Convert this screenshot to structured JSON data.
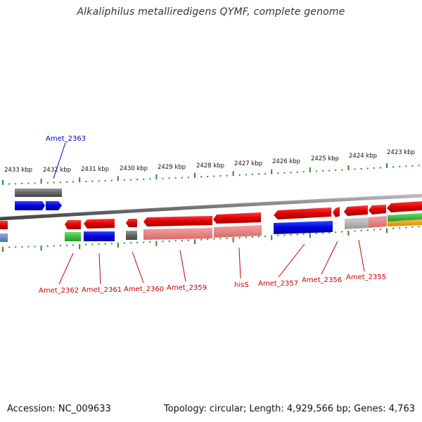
{
  "title": "Alkaliphilus metalliredigens QYMF, complete genome",
  "footer": {
    "accession": "Accession: NC_009633",
    "summary": "Topology: circular; Length: 4,929,566 bp; Genes: 4,763"
  },
  "scale_labels": [
    "2433 kbp",
    "2432 kbp",
    "2431 kbp",
    "2430 kbp",
    "2429 kbp",
    "2428 kbp",
    "2427 kbp",
    "2426 kbp",
    "2425 kbp",
    "2424 kbp",
    "2423 kbp"
  ],
  "gene_labels_bottom": [
    "Amet_2362",
    "Amet_2361",
    "Amet_2360",
    "Amet_2359",
    "hisS",
    "Amet_2357",
    "Amet_2356",
    "Amet_2355"
  ],
  "gene_label_top": "Amet_2363",
  "colors": {
    "forward_gene": "#0000dd",
    "reverse_gene": "#e00000",
    "reverse_light": "#e88080",
    "ticks": "#2a8a2a",
    "backbone": "#888888",
    "grey_feature": "#777777",
    "green_feature": "#33bb33",
    "orange_feature": "#ee9900",
    "label_red": "#cc0000",
    "label_blue": "#0000bb"
  }
}
